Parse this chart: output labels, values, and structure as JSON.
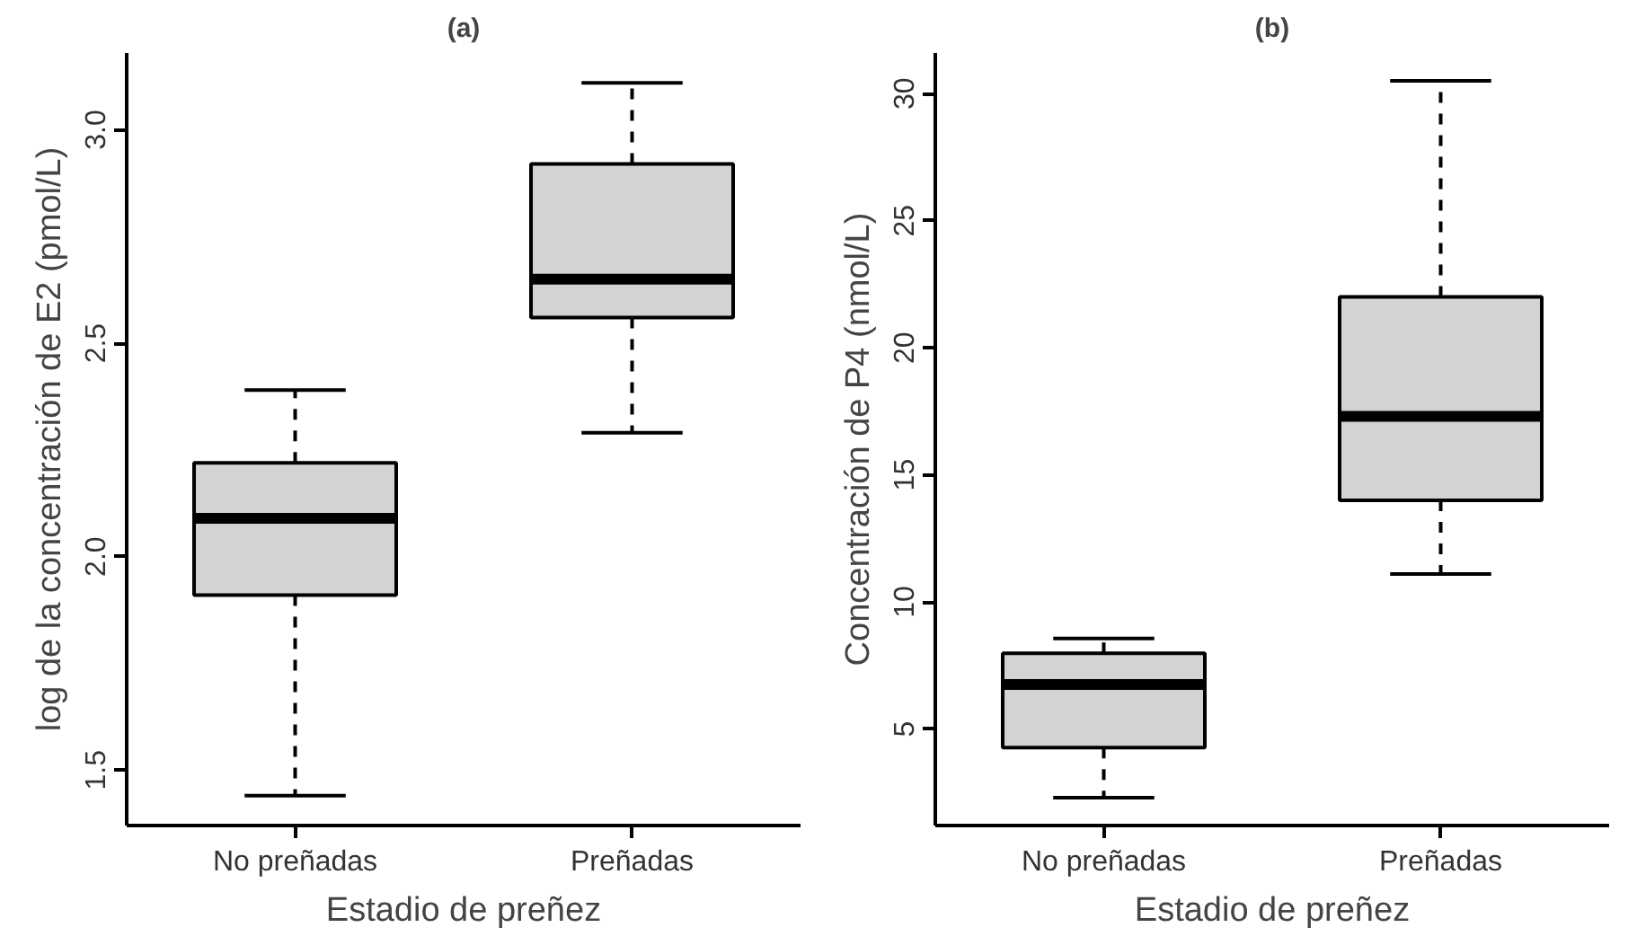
{
  "chart_data": [
    {
      "type": "box",
      "title": "(a)",
      "xlabel": "Estadio de preñez",
      "ylabel": "log de la concentración de E2 (pmol/L)",
      "categories": [
        "No preñadas",
        "Preñadas"
      ],
      "color": "#d3d3d3",
      "boxes": [
        {
          "low": 1.44,
          "q1": 1.91,
          "median": 2.09,
          "q3": 2.22,
          "high": 2.39
        },
        {
          "low": 2.29,
          "q1": 2.56,
          "median": 2.65,
          "q3": 2.92,
          "high": 3.11
        }
      ],
      "ylim": [
        1.37,
        3.18
      ],
      "yticks": [
        {
          "value": 1.5,
          "label": "1.5"
        },
        {
          "value": 2.0,
          "label": "2.0"
        },
        {
          "value": 2.5,
          "label": "2.5"
        },
        {
          "value": 3.0,
          "label": "3.0"
        }
      ],
      "grid": false
    },
    {
      "type": "box",
      "title": "(b)",
      "xlabel": "Estadio de preñez",
      "ylabel": "Concentración de P4 (nmol/L)",
      "categories": [
        "No preñadas",
        "Preñadas"
      ],
      "color": "#d3d3d3",
      "boxes": [
        {
          "low": 2.3,
          "q1": 4.27,
          "median": 6.75,
          "q3": 7.98,
          "high": 8.56
        },
        {
          "low": 11.1,
          "q1": 14.0,
          "median": 17.3,
          "q3": 22.0,
          "high": 30.5
        }
      ],
      "ylim": [
        1.2,
        31.6
      ],
      "yticks": [
        5,
        10,
        15,
        20,
        25,
        30
      ],
      "grid": false
    }
  ]
}
